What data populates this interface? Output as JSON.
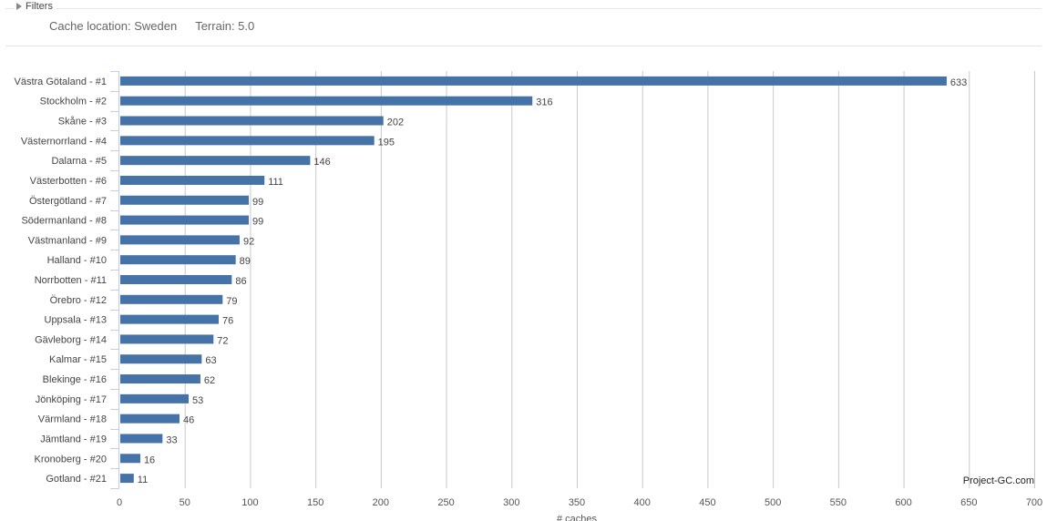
{
  "filters": {
    "label": "Filters",
    "items": [
      "Cache location: Sweden",
      "Terrain: 5.0"
    ]
  },
  "credit": "Project-GC.com",
  "chart_data": {
    "type": "bar",
    "orientation": "horizontal",
    "categories": [
      "Västra Götaland - #1",
      "Stockholm - #2",
      "Skåne - #3",
      "Västernorrland - #4",
      "Dalarna - #5",
      "Västerbotten - #6",
      "Östergötland - #7",
      "Södermanland - #8",
      "Västmanland - #9",
      "Halland - #10",
      "Norrbotten - #11",
      "Örebro - #12",
      "Uppsala - #13",
      "Gävleborg - #14",
      "Kalmar - #15",
      "Blekinge - #16",
      "Jönköping - #17",
      "Värmland - #18",
      "Jämtland - #19",
      "Kronoberg - #20",
      "Gotland - #21"
    ],
    "values": [
      633,
      316,
      202,
      195,
      146,
      111,
      99,
      99,
      92,
      89,
      86,
      79,
      76,
      72,
      63,
      62,
      53,
      46,
      33,
      16,
      11
    ],
    "xlabel": "# caches",
    "xlim": [
      0,
      700
    ],
    "xticks": [
      0,
      50,
      100,
      150,
      200,
      250,
      300,
      350,
      400,
      450,
      500,
      550,
      600,
      650,
      700
    ],
    "grid": true,
    "bar_color": "#4572a7"
  }
}
